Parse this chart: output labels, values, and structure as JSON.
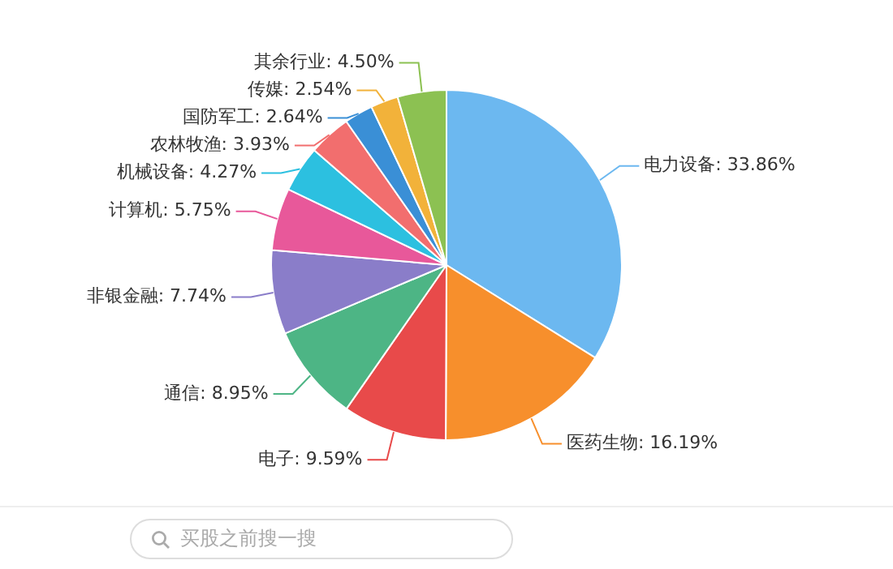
{
  "chart_data": {
    "type": "pie",
    "categories": [
      "电力设备",
      "医药生物",
      "电子",
      "通信",
      "非银金融",
      "计算机",
      "机械设备",
      "农林牧渔",
      "国防军工",
      "传媒",
      "其余行业"
    ],
    "values": [
      33.86,
      16.19,
      9.59,
      8.95,
      7.74,
      5.75,
      4.27,
      3.93,
      2.64,
      2.54,
      4.5
    ],
    "value_labels": [
      "33.86%",
      "16.19%",
      "9.59%",
      "8.95%",
      "7.74%",
      "5.75%",
      "4.27%",
      "3.93%",
      "2.64%",
      "2.54%",
      "4.50%"
    ],
    "colors": [
      "#6cb8f0",
      "#f78f2c",
      "#e84a4a",
      "#4db585",
      "#8a7dc9",
      "#e8589a",
      "#2cc0e0",
      "#f26e6e",
      "#3a8fd6",
      "#f2b23a",
      "#8cc152"
    ],
    "legend": false,
    "annotations": [
      "买股之前搜一搜"
    ]
  }
}
